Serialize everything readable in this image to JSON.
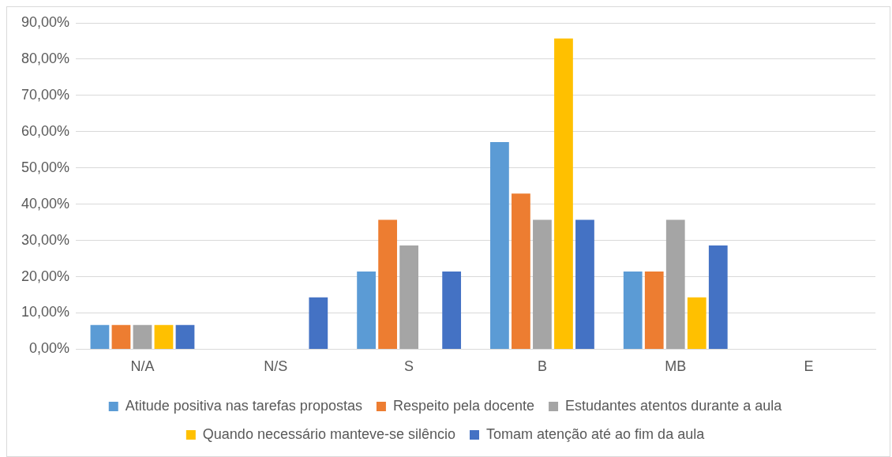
{
  "chart_data": {
    "type": "bar",
    "categories": [
      "N/A",
      "N/S",
      "S",
      "B",
      "MB",
      "E"
    ],
    "series": [
      {
        "name": "Atitude positiva nas tarefas propostas",
        "color": "#5b9bd5",
        "values": [
          6.7,
          0,
          21.4,
          57.1,
          21.4,
          0
        ]
      },
      {
        "name": "Respeito pela docente",
        "color": "#ed7d31",
        "values": [
          6.7,
          0,
          35.7,
          42.9,
          21.4,
          0
        ]
      },
      {
        "name": "Estudantes atentos durante a aula",
        "color": "#a5a5a5",
        "values": [
          6.7,
          0,
          28.6,
          35.7,
          35.7,
          0
        ]
      },
      {
        "name": "Quando necessário manteve-se silêncio",
        "color": "#ffc000",
        "values": [
          6.7,
          0,
          0,
          85.7,
          14.3,
          0
        ]
      },
      {
        "name": "Tomam atenção até ao fim da aula",
        "color": "#4472c4",
        "values": [
          6.7,
          14.3,
          21.4,
          35.7,
          28.6,
          0
        ]
      }
    ],
    "ylim": [
      0,
      90
    ],
    "yticks": [
      {
        "value": 0,
        "label": "0,00%"
      },
      {
        "value": 10,
        "label": "10,00%"
      },
      {
        "value": 20,
        "label": "20,00%"
      },
      {
        "value": 30,
        "label": "30,00%"
      },
      {
        "value": 40,
        "label": "40,00%"
      },
      {
        "value": 50,
        "label": "50,00%"
      },
      {
        "value": 60,
        "label": "60,00%"
      },
      {
        "value": 70,
        "label": "70,00%"
      },
      {
        "value": 80,
        "label": "80,00%"
      },
      {
        "value": 90,
        "label": "90,00%"
      }
    ],
    "grid": "y",
    "legend": "bottom"
  }
}
